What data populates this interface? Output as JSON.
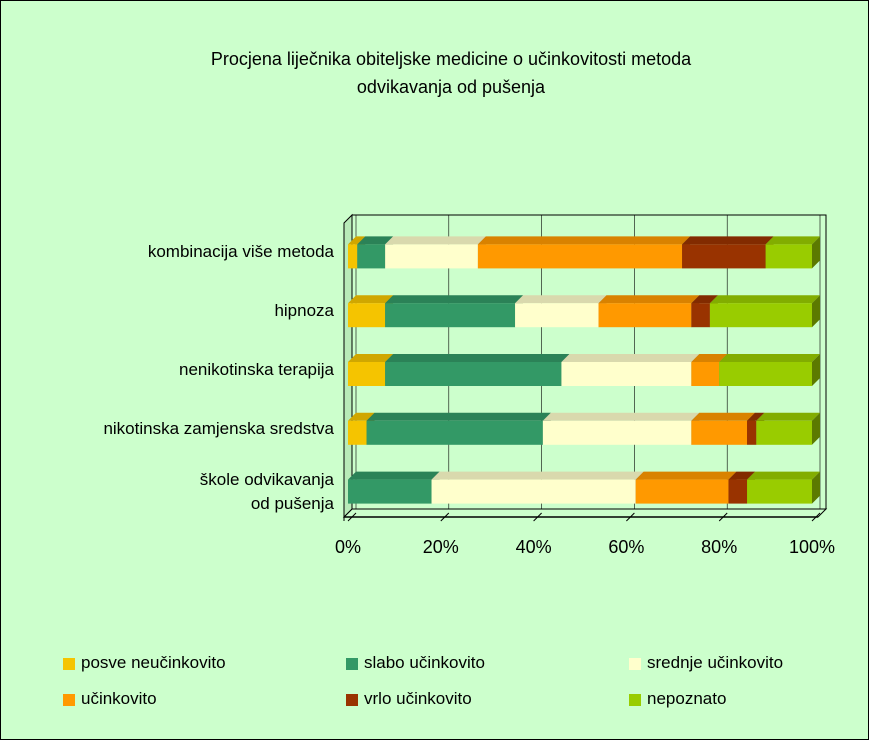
{
  "chart_data": {
    "type": "bar_stacked_horizontal",
    "title": "Procjena liječnika obiteljske medicine o učinkovitosti metoda\nodvikavanja od pušenja",
    "categories": [
      "kombinacija više metoda",
      "hipnoza",
      "nenikotinska terapija",
      "nikotinska zamjenska sredstva",
      "škole odvikavanja\nod pušenja"
    ],
    "series": [
      {
        "name": "posve neučinkovito",
        "color": "#f5c400",
        "values": [
          2,
          8,
          8,
          4,
          0
        ]
      },
      {
        "name": "slabo učinkovito",
        "color": "#339966",
        "values": [
          6,
          28,
          38,
          38,
          18
        ]
      },
      {
        "name": "srednje učinkovito",
        "color": "#ffffcc",
        "values": [
          20,
          18,
          28,
          32,
          44
        ]
      },
      {
        "name": "učinkovito",
        "color": "#ff9900",
        "values": [
          44,
          20,
          6,
          12,
          20
        ]
      },
      {
        "name": "vrlo učinkovito",
        "color": "#993300",
        "values": [
          18,
          4,
          0,
          2,
          4
        ]
      },
      {
        "name": "nepoznato",
        "color": "#99cc00",
        "values": [
          10,
          22,
          20,
          12,
          14
        ]
      }
    ],
    "xlim": [
      0,
      100
    ],
    "xticks": [
      {
        "value": 0,
        "label": "0%"
      },
      {
        "value": 20,
        "label": "20%"
      },
      {
        "value": 40,
        "label": "40%"
      },
      {
        "value": 60,
        "label": "60%"
      },
      {
        "value": 80,
        "label": "80%"
      },
      {
        "value": 100,
        "label": "100%"
      }
    ],
    "grid": true,
    "legend": "bottom"
  }
}
